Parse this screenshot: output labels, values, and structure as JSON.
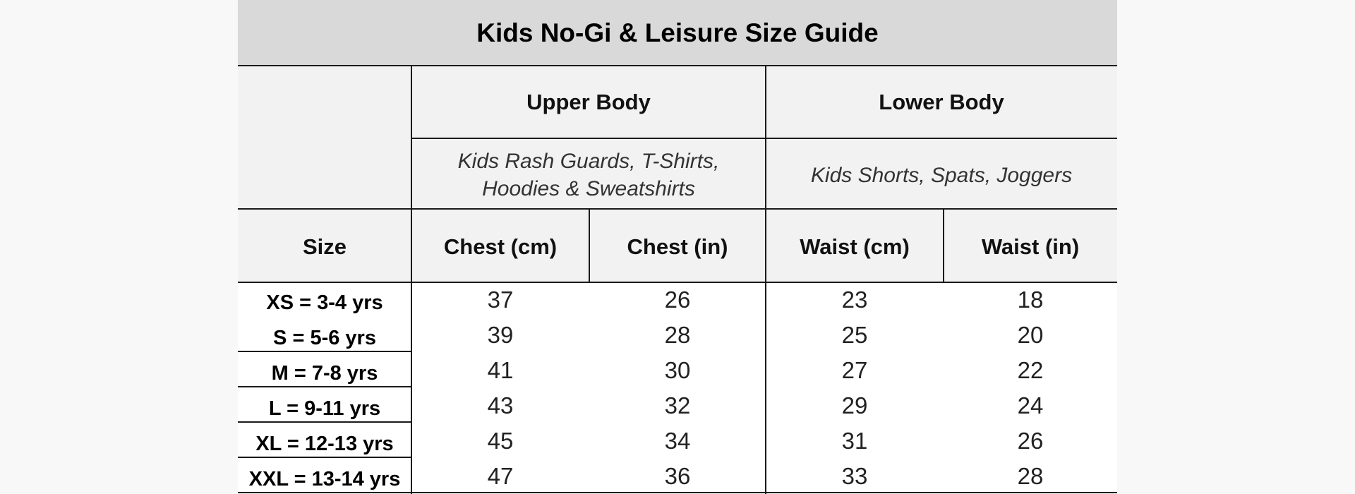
{
  "title": "Kids No-Gi & Leisure Size Guide",
  "upper": {
    "heading": "Upper Body",
    "subheading_line1": "Kids Rash Guards, T-Shirts,",
    "subheading_line2": "Hoodies & Sweatshirts"
  },
  "lower": {
    "heading": "Lower Body",
    "subheading": "Kids Shorts, Spats, Joggers"
  },
  "columns": [
    "Size",
    "Chest (cm)",
    "Chest (in)",
    "Waist (cm)",
    "Waist (in)"
  ],
  "rows": [
    [
      "XS = 3-4 yrs",
      "37",
      "26",
      "23",
      "18"
    ],
    [
      "S = 5-6 yrs",
      "39",
      "28",
      "25",
      "20"
    ],
    [
      "M = 7-8 yrs",
      "41",
      "30",
      "27",
      "22"
    ],
    [
      "L = 9-11 yrs",
      "43",
      "32",
      "29",
      "24"
    ],
    [
      "XL = 12-13 yrs",
      "45",
      "34",
      "31",
      "26"
    ],
    [
      "XXL = 13-14 yrs",
      "47",
      "36",
      "33",
      "28"
    ]
  ],
  "colors": {
    "title_bg": "#d9d9d9",
    "header_bg": "#f2f2f2",
    "page_bg": "#f8f8f8",
    "border": "#1a1a1a"
  }
}
